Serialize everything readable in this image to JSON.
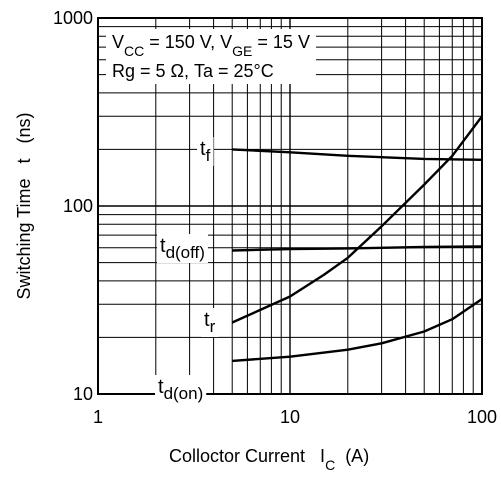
{
  "chart_data": {
    "type": "line",
    "scale": {
      "x": "log",
      "y": "log"
    },
    "xlim": [
      1,
      100
    ],
    "ylim": [
      10,
      1000
    ],
    "x_ticks": [
      {
        "value": 1,
        "label": "1"
      },
      {
        "value": 10,
        "label": "10"
      },
      {
        "value": 100,
        "label": "100"
      }
    ],
    "y_ticks": [
      {
        "value": 10,
        "label": "10"
      },
      {
        "value": 100,
        "label": "100"
      },
      {
        "value": 1000,
        "label": "1000"
      }
    ],
    "xlabel": {
      "parts": [
        {
          "text": "Colloctor Current   I"
        },
        {
          "text": "C",
          "sub": true
        },
        {
          "text": "  (A)"
        }
      ]
    },
    "ylabel": "Switching Time   t   (ns)",
    "grid": true,
    "conditions": [
      [
        {
          "text": "V"
        },
        {
          "text": "CC",
          "sub": true
        },
        {
          "text": " = 150 V, V"
        },
        {
          "text": "GE",
          "sub": true
        },
        {
          "text": " = 15 V"
        }
      ],
      [
        {
          "text": "Rg = 5 Ω, Ta = 25°C"
        }
      ]
    ],
    "series": [
      {
        "name": "tf",
        "label": {
          "base": "t",
          "sub": "f"
        },
        "x": [
          5,
          10,
          20,
          50,
          100
        ],
        "y": [
          200,
          193,
          185,
          178,
          176
        ]
      },
      {
        "name": "td(off)",
        "label": {
          "base": "t",
          "sub": "d(off)"
        },
        "x": [
          5,
          10,
          20,
          50,
          100
        ],
        "y": [
          58,
          59,
          59.5,
          60.5,
          61
        ]
      },
      {
        "name": "tr",
        "label": {
          "base": "t",
          "sub": "r"
        },
        "x": [
          5,
          7,
          10,
          15,
          20,
          30,
          50,
          70,
          100
        ],
        "y": [
          24,
          28,
          33,
          43,
          53,
          78,
          130,
          185,
          300
        ]
      },
      {
        "name": "td(on)",
        "label": {
          "base": "t",
          "sub": "d(on)"
        },
        "x": [
          5,
          10,
          20,
          30,
          50,
          70,
          100
        ],
        "y": [
          15,
          15.8,
          17.2,
          18.6,
          21.5,
          25,
          32
        ]
      }
    ]
  }
}
